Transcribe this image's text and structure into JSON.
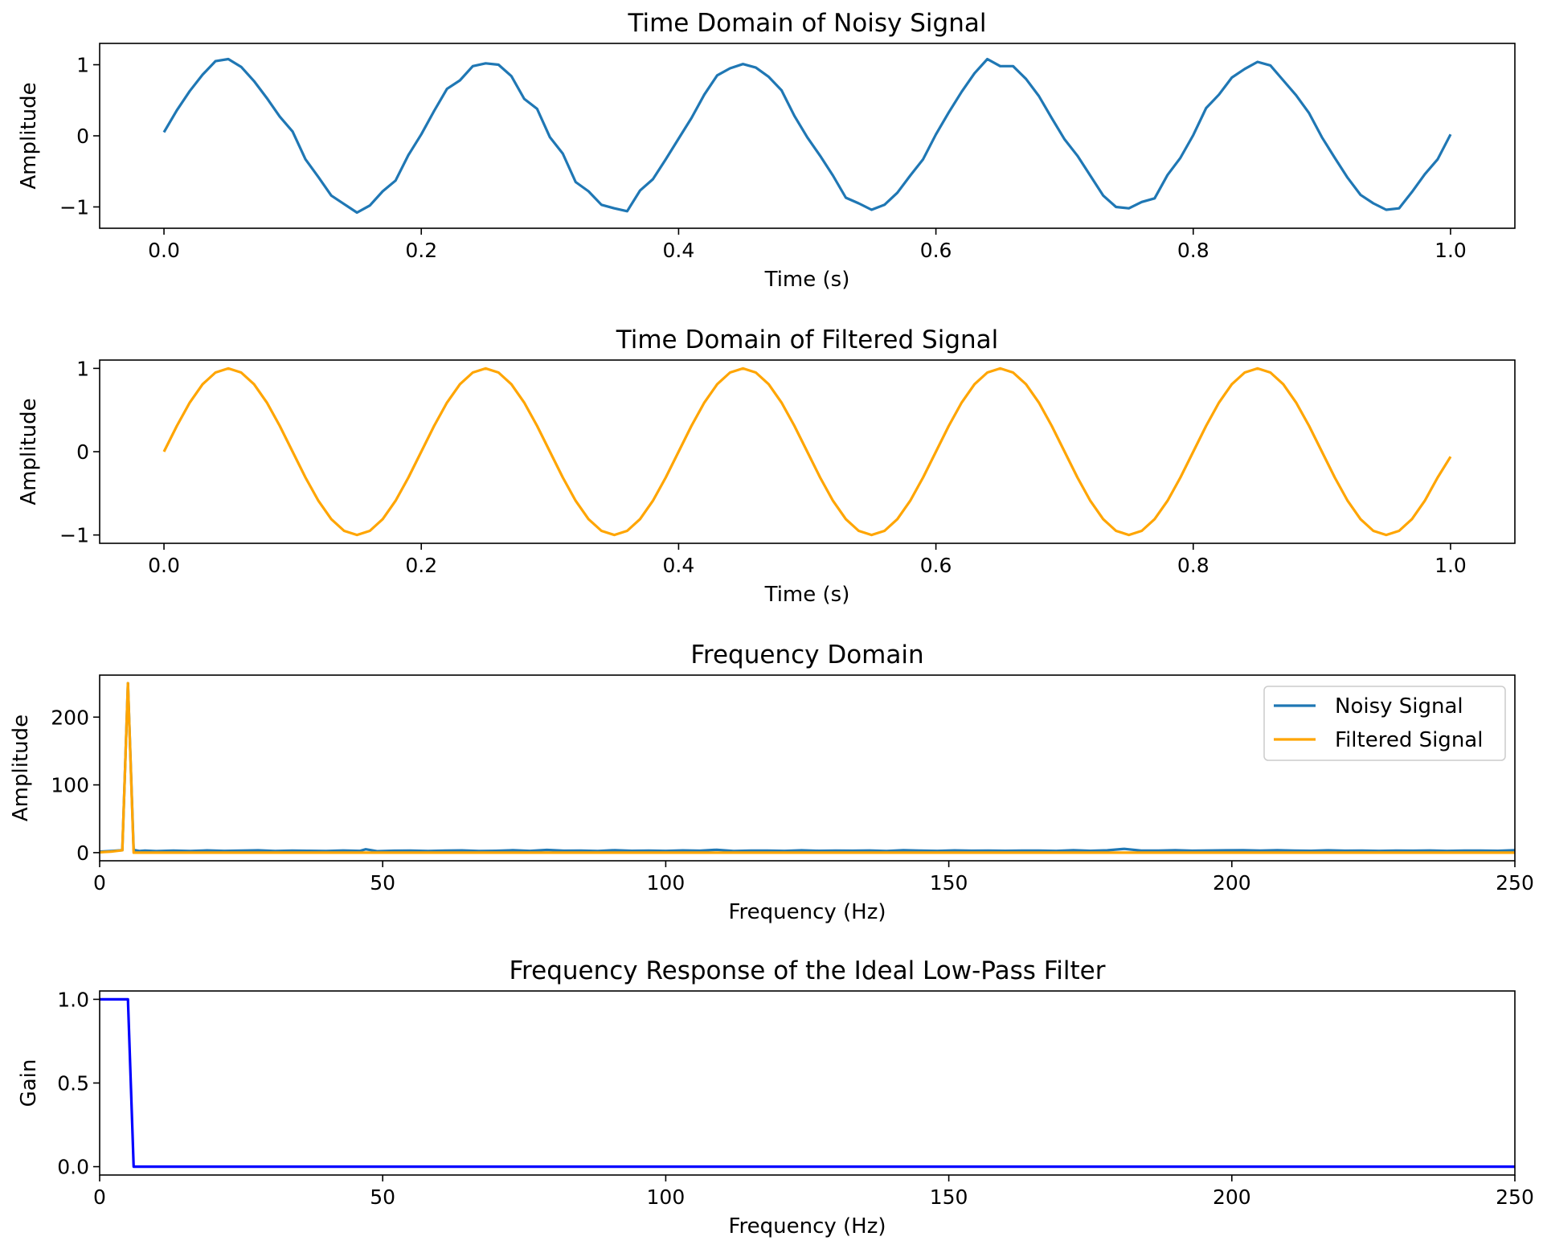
{
  "figure": {
    "colors": {
      "noisy": "#1f77b4",
      "filtered": "#ffa500",
      "filter": "#0000ff",
      "axes": "#000000"
    }
  },
  "chart_data": [
    {
      "id": "noisy_time",
      "type": "line",
      "title": "Time Domain of Noisy Signal",
      "xlabel": "Time (s)",
      "ylabel": "Amplitude",
      "xlim": [
        -0.05,
        1.05
      ],
      "ylim": [
        -1.3,
        1.3
      ],
      "xticks": [
        0.0,
        0.2,
        0.4,
        0.6,
        0.8,
        1.0
      ],
      "xtick_labels": [
        "0.0",
        "0.2",
        "0.4",
        "0.6",
        "0.8",
        "1.0"
      ],
      "yticks": [
        -1,
        0,
        1
      ],
      "ytick_labels": [
        "−1",
        "0",
        "1"
      ],
      "grid": false,
      "series": [
        {
          "color": "#1f77b4",
          "x": [
            0.0,
            0.01,
            0.02,
            0.03,
            0.04,
            0.05,
            0.06,
            0.07,
            0.08,
            0.09,
            0.1,
            0.11,
            0.12,
            0.13,
            0.14,
            0.15,
            0.16,
            0.17,
            0.18,
            0.19,
            0.2,
            0.21,
            0.22,
            0.23,
            0.24,
            0.25,
            0.26,
            0.27,
            0.28,
            0.29,
            0.3,
            0.31,
            0.32,
            0.33,
            0.34,
            0.35,
            0.36,
            0.37,
            0.38,
            0.39,
            0.4,
            0.41,
            0.42,
            0.43,
            0.44,
            0.45,
            0.46,
            0.47,
            0.48,
            0.49,
            0.5,
            0.51,
            0.52,
            0.53,
            0.54,
            0.55,
            0.56,
            0.57,
            0.58,
            0.59,
            0.6,
            0.61,
            0.62,
            0.63,
            0.64,
            0.65,
            0.66,
            0.67,
            0.68,
            0.69,
            0.7,
            0.71,
            0.72,
            0.73,
            0.74,
            0.75,
            0.76,
            0.77,
            0.78,
            0.79,
            0.8,
            0.81,
            0.82,
            0.83,
            0.84,
            0.85,
            0.86,
            0.87,
            0.88,
            0.89,
            0.9,
            0.91,
            0.92,
            0.93,
            0.94,
            0.95,
            0.96,
            0.97,
            0.98,
            0.99,
            1.0
          ],
          "y": [
            0.05,
            0.36,
            0.63,
            0.86,
            1.05,
            1.08,
            0.97,
            0.77,
            0.53,
            0.27,
            0.06,
            -0.33,
            -0.58,
            -0.84,
            -0.96,
            -1.08,
            -0.98,
            -0.78,
            -0.63,
            -0.27,
            0.02,
            0.35,
            0.66,
            0.78,
            0.98,
            1.02,
            1.0,
            0.84,
            0.52,
            0.38,
            -0.02,
            -0.25,
            -0.65,
            -0.78,
            -0.97,
            -1.02,
            -1.06,
            -0.77,
            -0.61,
            -0.33,
            -0.04,
            0.25,
            0.58,
            0.85,
            0.95,
            1.01,
            0.96,
            0.83,
            0.64,
            0.28,
            -0.02,
            -0.28,
            -0.56,
            -0.87,
            -0.95,
            -1.04,
            -0.97,
            -0.8,
            -0.56,
            -0.33,
            0.02,
            0.33,
            0.62,
            0.88,
            1.08,
            0.98,
            0.98,
            0.8,
            0.56,
            0.25,
            -0.05,
            -0.28,
            -0.56,
            -0.84,
            -1.0,
            -1.02,
            -0.93,
            -0.88,
            -0.55,
            -0.31,
            0.01,
            0.39,
            0.58,
            0.82,
            0.94,
            1.04,
            0.99,
            0.78,
            0.57,
            0.32,
            -0.02,
            -0.31,
            -0.59,
            -0.83,
            -0.95,
            -1.04,
            -1.02,
            -0.79,
            -0.54,
            -0.33,
            0.02
          ]
        }
      ]
    },
    {
      "id": "filtered_time",
      "type": "line",
      "title": "Time Domain of Filtered Signal",
      "xlabel": "Time (s)",
      "ylabel": "Amplitude",
      "xlim": [
        -0.05,
        1.05
      ],
      "ylim": [
        -1.1,
        1.1
      ],
      "xticks": [
        0.0,
        0.2,
        0.4,
        0.6,
        0.8,
        1.0
      ],
      "xtick_labels": [
        "0.0",
        "0.2",
        "0.4",
        "0.6",
        "0.8",
        "1.0"
      ],
      "yticks": [
        -1,
        0,
        1
      ],
      "ytick_labels": [
        "−1",
        "0",
        "1"
      ],
      "grid": false,
      "series": [
        {
          "color": "#ffa500",
          "x": [
            0.0,
            0.01,
            0.02,
            0.03,
            0.04,
            0.05,
            0.06,
            0.07,
            0.08,
            0.09,
            0.1,
            0.11,
            0.12,
            0.13,
            0.14,
            0.15,
            0.16,
            0.17,
            0.18,
            0.19,
            0.2,
            0.21,
            0.22,
            0.23,
            0.24,
            0.25,
            0.26,
            0.27,
            0.28,
            0.29,
            0.3,
            0.31,
            0.32,
            0.33,
            0.34,
            0.35,
            0.36,
            0.37,
            0.38,
            0.39,
            0.4,
            0.41,
            0.42,
            0.43,
            0.44,
            0.45,
            0.46,
            0.47,
            0.48,
            0.49,
            0.5,
            0.51,
            0.52,
            0.53,
            0.54,
            0.55,
            0.56,
            0.57,
            0.58,
            0.59,
            0.6,
            0.61,
            0.62,
            0.63,
            0.64,
            0.65,
            0.66,
            0.67,
            0.68,
            0.69,
            0.7,
            0.71,
            0.72,
            0.73,
            0.74,
            0.75,
            0.76,
            0.77,
            0.78,
            0.79,
            0.8,
            0.81,
            0.82,
            0.83,
            0.84,
            0.85,
            0.86,
            0.87,
            0.88,
            0.89,
            0.9,
            0.91,
            0.92,
            0.93,
            0.94,
            0.95,
            0.96,
            0.97,
            0.98,
            0.99,
            1.0
          ],
          "y": [
            0.0,
            0.31,
            0.59,
            0.81,
            0.95,
            1.0,
            0.95,
            0.81,
            0.59,
            0.31,
            0.0,
            -0.31,
            -0.59,
            -0.81,
            -0.95,
            -1.0,
            -0.95,
            -0.81,
            -0.59,
            -0.31,
            0.0,
            0.31,
            0.59,
            0.81,
            0.95,
            1.0,
            0.95,
            0.81,
            0.59,
            0.31,
            0.0,
            -0.31,
            -0.59,
            -0.81,
            -0.95,
            -1.0,
            -0.95,
            -0.81,
            -0.59,
            -0.31,
            0.0,
            0.31,
            0.59,
            0.81,
            0.95,
            1.0,
            0.95,
            0.81,
            0.59,
            0.31,
            0.0,
            -0.31,
            -0.59,
            -0.81,
            -0.95,
            -1.0,
            -0.95,
            -0.81,
            -0.59,
            -0.31,
            0.0,
            0.31,
            0.59,
            0.81,
            0.95,
            1.0,
            0.95,
            0.81,
            0.59,
            0.31,
            0.0,
            -0.31,
            -0.59,
            -0.81,
            -0.95,
            -1.0,
            -0.95,
            -0.81,
            -0.59,
            -0.31,
            0.0,
            0.31,
            0.59,
            0.81,
            0.95,
            1.0,
            0.95,
            0.81,
            0.59,
            0.31,
            0.0,
            -0.31,
            -0.59,
            -0.81,
            -0.95,
            -1.0,
            -0.95,
            -0.81,
            -0.59,
            -0.31,
            -0.06
          ]
        }
      ]
    },
    {
      "id": "frequency_domain",
      "type": "line",
      "title": "Frequency Domain",
      "xlabel": "Frequency (Hz)",
      "ylabel": "Amplitude",
      "xlim": [
        0,
        250
      ],
      "ylim": [
        -12,
        262
      ],
      "xticks": [
        0,
        50,
        100,
        150,
        200,
        250
      ],
      "xtick_labels": [
        "0",
        "50",
        "100",
        "150",
        "200",
        "250"
      ],
      "yticks": [
        0,
        100,
        200
      ],
      "ytick_labels": [
        "0",
        "100",
        "200"
      ],
      "grid": false,
      "legend": "top-right",
      "series": [
        {
          "name": "Noisy Signal",
          "color": "#1f77b4",
          "x": [
            0,
            1,
            2,
            3,
            4,
            5,
            6,
            7,
            8,
            10,
            13,
            16,
            19,
            22,
            25,
            28,
            31,
            34,
            37,
            40,
            43,
            46,
            47,
            49,
            52,
            55,
            58,
            61,
            64,
            67,
            70,
            73,
            76,
            79,
            82,
            85,
            88,
            91,
            94,
            97,
            100,
            103,
            106,
            109,
            112,
            115,
            118,
            121,
            124,
            127,
            130,
            133,
            136,
            139,
            142,
            145,
            148,
            151,
            154,
            157,
            160,
            163,
            166,
            169,
            172,
            175,
            178,
            181,
            184,
            187,
            190,
            193,
            196,
            199,
            202,
            205,
            208,
            211,
            214,
            217,
            220,
            223,
            226,
            229,
            232,
            235,
            238,
            241,
            244,
            247,
            250
          ],
          "y": [
            1.5,
            2.0,
            2.5,
            3.0,
            3.5,
            250.0,
            4.0,
            2.5,
            3.0,
            2.2,
            3.1,
            2.4,
            3.3,
            2.6,
            2.9,
            3.4,
            2.3,
            3.0,
            2.7,
            2.4,
            3.2,
            2.6,
            5.0,
            2.1,
            2.8,
            3.1,
            2.5,
            2.9,
            3.3,
            2.4,
            2.7,
            3.5,
            2.6,
            4.0,
            2.8,
            3.0,
            2.5,
            3.6,
            2.7,
            2.9,
            2.6,
            3.3,
            2.8,
            4.2,
            2.5,
            3.1,
            2.9,
            2.6,
            3.4,
            2.7,
            3.0,
            2.8,
            3.2,
            2.5,
            3.6,
            2.9,
            2.6,
            3.3,
            2.8,
            3.0,
            2.7,
            3.1,
            2.9,
            2.6,
            3.5,
            2.7,
            3.4,
            5.5,
            3.0,
            2.9,
            3.6,
            2.8,
            3.2,
            3.4,
            3.7,
            2.9,
            3.5,
            3.1,
            2.7,
            3.4,
            2.8,
            3.1,
            2.6,
            3.0,
            2.8,
            3.2,
            2.6,
            3.1,
            2.9,
            2.7,
            3.6
          ]
        },
        {
          "name": "Filtered Signal",
          "color": "#ffa500",
          "x": [
            0,
            1,
            2,
            3,
            4,
            5,
            6,
            7,
            250
          ],
          "y": [
            0.5,
            1.0,
            1.5,
            2.5,
            3.5,
            250.0,
            0.0,
            0.0,
            0.0
          ]
        }
      ]
    },
    {
      "id": "filter_response",
      "type": "line",
      "title": "Frequency Response of the Ideal Low-Pass Filter",
      "xlabel": "Frequency (Hz)",
      "ylabel": "Gain",
      "xlim": [
        0,
        250
      ],
      "ylim": [
        -0.05,
        1.05
      ],
      "xticks": [
        0,
        50,
        100,
        150,
        200,
        250
      ],
      "xtick_labels": [
        "0",
        "50",
        "100",
        "150",
        "200",
        "250"
      ],
      "yticks": [
        0.0,
        0.5,
        1.0
      ],
      "ytick_labels": [
        "0.0",
        "0.5",
        "1.0"
      ],
      "grid": false,
      "series": [
        {
          "color": "#0000ff",
          "x": [
            0,
            5,
            6,
            250
          ],
          "y": [
            1,
            1,
            0,
            0
          ]
        }
      ]
    }
  ]
}
